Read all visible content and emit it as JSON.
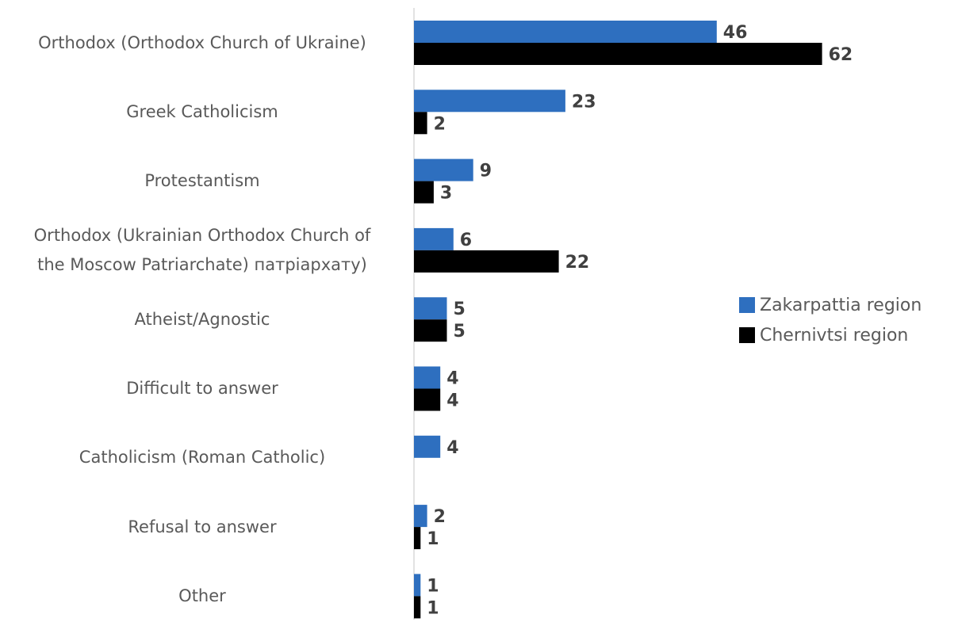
{
  "chart_data": {
    "type": "bar",
    "orientation": "horizontal",
    "categories": [
      "Orthodox (Orthodox Church of Ukraine)",
      "Greek Catholicism",
      "Protestantism",
      "Orthodox (Ukrainian Orthodox Church of the Moscow Patriarchate) патріархату)",
      "Atheist/Agnostic",
      "Difficult to answer",
      "Catholicism (Roman Catholic)",
      "Refusal to answer",
      "Other"
    ],
    "category_lines": [
      [
        "Orthodox (Orthodox Church of Ukraine)"
      ],
      [
        "Greek Catholicism"
      ],
      [
        "Protestantism"
      ],
      [
        "Orthodox (Ukrainian Orthodox Church of",
        "the Moscow Patriarchate) патріархату)"
      ],
      [
        "Atheist/Agnostic"
      ],
      [
        "Difficult to answer"
      ],
      [
        "Catholicism (Roman Catholic)"
      ],
      [
        "Refusal to answer"
      ],
      [
        "Other"
      ]
    ],
    "series": [
      {
        "name": "Zakarpattia region",
        "color": "#2e6fbf",
        "values": [
          46,
          23,
          9,
          6,
          5,
          4,
          4,
          2,
          1
        ]
      },
      {
        "name": "Chernivtsi region",
        "color": "#000000",
        "values": [
          62,
          2,
          3,
          22,
          5,
          4,
          null,
          1,
          1
        ]
      }
    ],
    "xlim": [
      0,
      65
    ],
    "grid": false,
    "legend_position": "right"
  }
}
